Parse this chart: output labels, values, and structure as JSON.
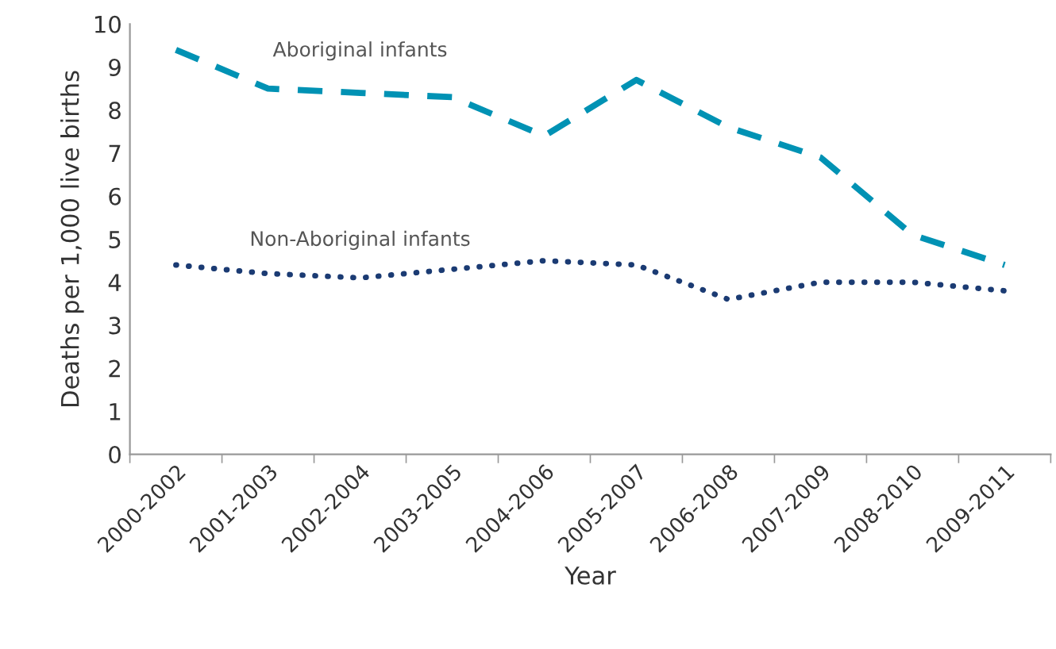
{
  "chart_data": {
    "type": "line",
    "xlabel": "Year",
    "ylabel": "Deaths per 1,000 live births",
    "categories": [
      "2000-2002",
      "2001-2003",
      "2002-2004",
      "2003-2005",
      "2004-2006",
      "2005-2007",
      "2006-2008",
      "2007-2009",
      "2008-2010",
      "2009-2011"
    ],
    "series": [
      {
        "name": "Aboriginal infants",
        "color": "#0092b4",
        "line_style": "dashed",
        "values": [
          9.4,
          8.5,
          8.4,
          8.3,
          7.4,
          8.7,
          7.6,
          6.9,
          5.1,
          4.4
        ]
      },
      {
        "name": "Non-Aboriginal infants",
        "color": "#1b3b73",
        "line_style": "dotted",
        "values": [
          4.4,
          4.2,
          4.1,
          4.3,
          4.5,
          4.4,
          3.6,
          4.0,
          4.0,
          3.8
        ]
      }
    ],
    "ylim": [
      0,
      10
    ],
    "yticks": [
      0,
      1,
      2,
      3,
      4,
      5,
      6,
      7,
      8,
      9,
      10
    ],
    "grid": false,
    "legend": false
  }
}
